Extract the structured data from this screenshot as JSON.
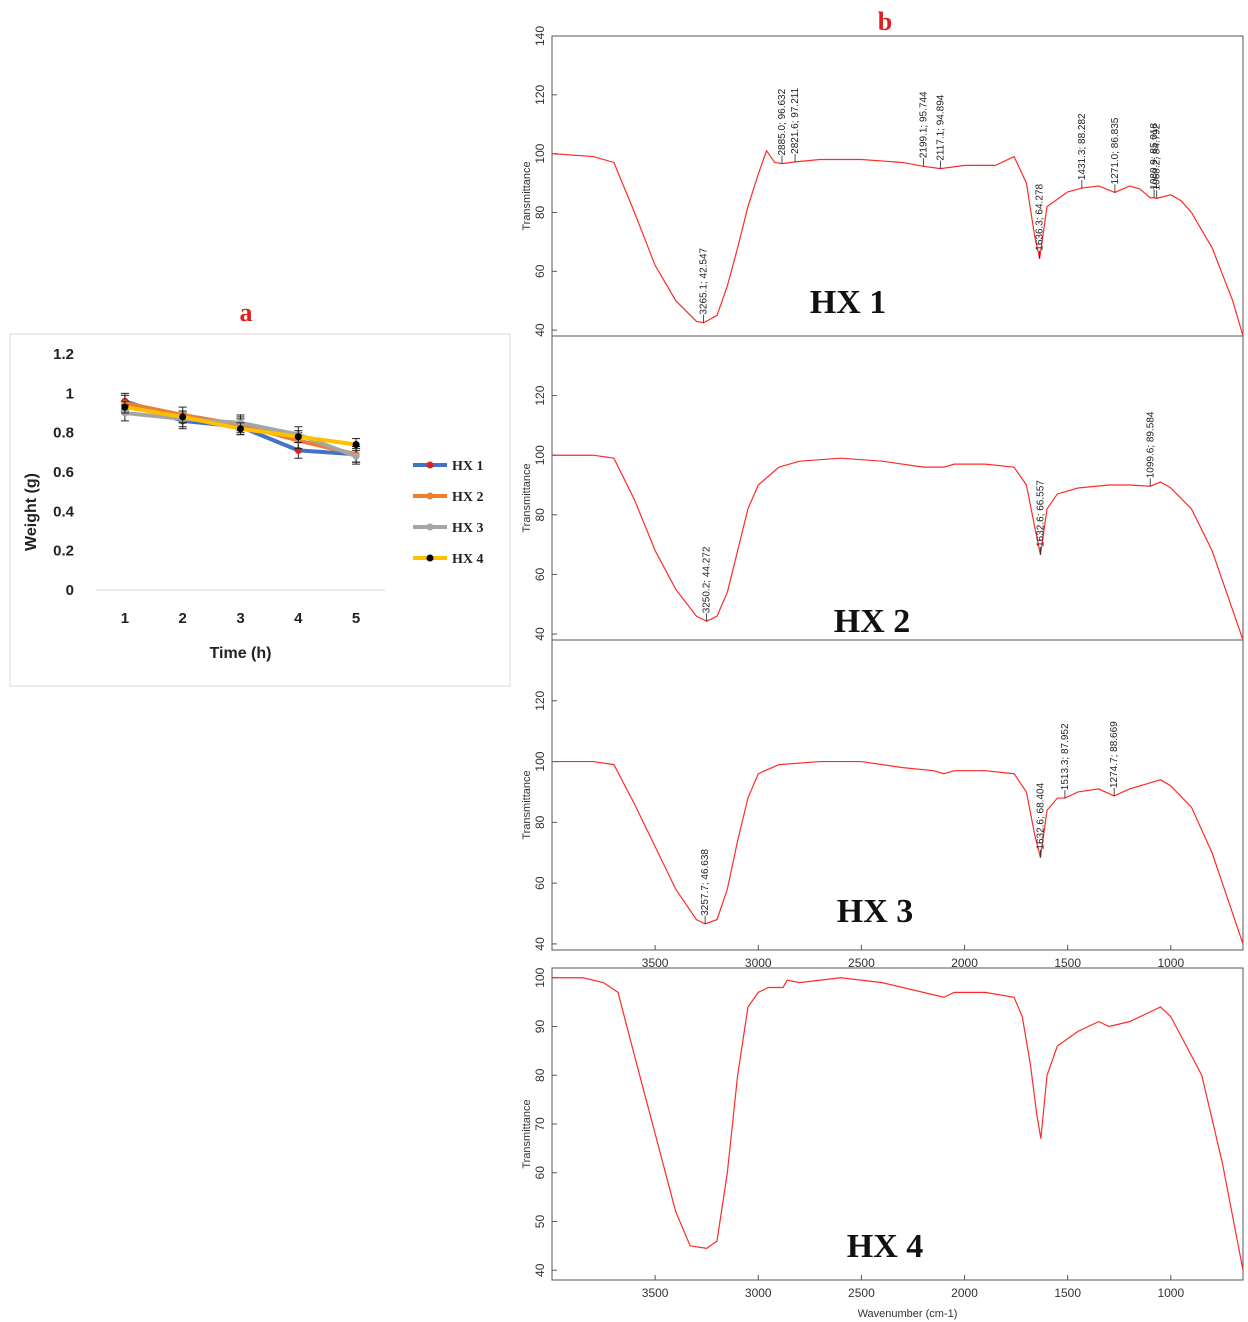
{
  "panel_a": {
    "letter": "a",
    "chart_data": {
      "type": "line",
      "xlabel": "Time (h)",
      "ylabel": "Weight (g)",
      "x": [
        1,
        2,
        3,
        4,
        5
      ],
      "x_ticks": [
        "1",
        "2",
        "3",
        "4",
        "5"
      ],
      "y_ticks": [
        "0",
        "0.2",
        "0.4",
        "0.6",
        "0.8",
        "1",
        "1.2"
      ],
      "ylim": [
        0,
        1.2
      ],
      "legend_position": "right",
      "series": [
        {
          "name": "HX 1",
          "color": "#4472c4",
          "marker": "#e02020",
          "values": [
            0.96,
            0.86,
            0.83,
            0.71,
            0.69
          ],
          "err": 0.04
        },
        {
          "name": "HX 2",
          "color": "#ed7d31",
          "marker": "#ed7d31",
          "values": [
            0.95,
            0.89,
            0.84,
            0.76,
            0.69
          ],
          "err": 0.04
        },
        {
          "name": "HX 3",
          "color": "#a5a5a5",
          "marker": "#a5a5a5",
          "values": [
            0.9,
            0.87,
            0.85,
            0.79,
            0.68
          ],
          "err": 0.04
        },
        {
          "name": "HX 4",
          "color": "#ffc000",
          "marker": "#000000",
          "values": [
            0.93,
            0.88,
            0.82,
            0.78,
            0.74
          ],
          "err": 0.03
        }
      ]
    }
  },
  "panel_b": {
    "letter": "b",
    "xlabel": "Wavenumber (cm-1)",
    "ylabel": "Transmittance",
    "x_ticks": [
      "3500",
      "3000",
      "2500",
      "2000",
      "1500",
      "1000"
    ],
    "chart_data": [
      {
        "type": "line",
        "label": "HX 1",
        "xlim": [
          4000,
          650
        ],
        "ylim": [
          38,
          140
        ],
        "y_ticks": [
          "40",
          "60",
          "80",
          "100",
          "120",
          "140"
        ],
        "points": [
          [
            4000,
            100
          ],
          [
            3800,
            99
          ],
          [
            3700,
            97
          ],
          [
            3600,
            80
          ],
          [
            3500,
            62
          ],
          [
            3400,
            50
          ],
          [
            3300,
            43
          ],
          [
            3265,
            42.5
          ],
          [
            3200,
            45
          ],
          [
            3150,
            55
          ],
          [
            3100,
            68
          ],
          [
            3050,
            82
          ],
          [
            3000,
            93
          ],
          [
            2960,
            101
          ],
          [
            2920,
            97
          ],
          [
            2885,
            96.6
          ],
          [
            2821,
            97.2
          ],
          [
            2700,
            98
          ],
          [
            2500,
            98
          ],
          [
            2300,
            97
          ],
          [
            2199,
            95.7
          ],
          [
            2117,
            94.9
          ],
          [
            2000,
            96
          ],
          [
            1850,
            96
          ],
          [
            1760,
            99
          ],
          [
            1700,
            90
          ],
          [
            1660,
            72
          ],
          [
            1636,
            64.3
          ],
          [
            1600,
            82
          ],
          [
            1500,
            87
          ],
          [
            1431,
            88.3
          ],
          [
            1350,
            89
          ],
          [
            1271,
            86.8
          ],
          [
            1200,
            89
          ],
          [
            1150,
            88
          ],
          [
            1100,
            85
          ],
          [
            1080,
            85
          ],
          [
            1068,
            84.8
          ],
          [
            1000,
            86
          ],
          [
            950,
            84
          ],
          [
            900,
            80
          ],
          [
            800,
            68
          ],
          [
            700,
            50
          ],
          [
            650,
            38
          ]
        ],
        "peaks": [
          {
            "x": 3265.1,
            "y": 42.547,
            "label": "3265.1; 42.547"
          },
          {
            "x": 2885.0,
            "y": 96.632,
            "label": "2885.0; 96.632"
          },
          {
            "x": 2821.6,
            "y": 97.211,
            "label": "2821.6; 97.211"
          },
          {
            "x": 2199.1,
            "y": 95.744,
            "label": "2199.1; 95.744"
          },
          {
            "x": 2117.1,
            "y": 94.894,
            "label": "2117.1; 94.894"
          },
          {
            "x": 1636.3,
            "y": 64.278,
            "label": "1636.3; 64.278"
          },
          {
            "x": 1431.3,
            "y": 88.282,
            "label": "1431.3; 88.282"
          },
          {
            "x": 1271.0,
            "y": 86.835,
            "label": "1271.0; 86.835"
          },
          {
            "x": 1080.9,
            "y": 85.018,
            "label": "1080.9; 85.018"
          },
          {
            "x": 1068.2,
            "y": 84.792,
            "label": "1068.2; 84.792"
          }
        ]
      },
      {
        "type": "line",
        "label": "HX 2",
        "xlim": [
          4000,
          650
        ],
        "ylim": [
          38,
          140
        ],
        "y_ticks": [
          "40",
          "60",
          "80",
          "100",
          "120"
        ],
        "points": [
          [
            4000,
            100
          ],
          [
            3800,
            100
          ],
          [
            3700,
            99
          ],
          [
            3600,
            85
          ],
          [
            3500,
            68
          ],
          [
            3400,
            55
          ],
          [
            3300,
            46
          ],
          [
            3250,
            44.3
          ],
          [
            3200,
            46
          ],
          [
            3150,
            54
          ],
          [
            3100,
            68
          ],
          [
            3050,
            82
          ],
          [
            3000,
            90
          ],
          [
            2900,
            96
          ],
          [
            2800,
            98
          ],
          [
            2600,
            99
          ],
          [
            2400,
            98
          ],
          [
            2200,
            96
          ],
          [
            2100,
            96
          ],
          [
            2050,
            97
          ],
          [
            1900,
            97
          ],
          [
            1760,
            96
          ],
          [
            1700,
            90
          ],
          [
            1660,
            76
          ],
          [
            1632,
            66.6
          ],
          [
            1600,
            82
          ],
          [
            1550,
            87
          ],
          [
            1450,
            89
          ],
          [
            1300,
            90
          ],
          [
            1200,
            90
          ],
          [
            1100,
            89.6
          ],
          [
            1050,
            91
          ],
          [
            1000,
            89
          ],
          [
            900,
            82
          ],
          [
            800,
            68
          ],
          [
            700,
            48
          ],
          [
            650,
            38
          ]
        ],
        "peaks": [
          {
            "x": 3250.2,
            "y": 44.272,
            "label": "3250.2; 44.272"
          },
          {
            "x": 1632.6,
            "y": 66.557,
            "label": "1632.6; 66.557"
          },
          {
            "x": 1099.6,
            "y": 89.584,
            "label": "1099.6; 89.584"
          }
        ]
      },
      {
        "type": "line",
        "label": "HX 3",
        "xlim": [
          4000,
          650
        ],
        "ylim": [
          38,
          140
        ],
        "y_ticks": [
          "40",
          "60",
          "80",
          "100",
          "120"
        ],
        "points": [
          [
            4000,
            100
          ],
          [
            3800,
            100
          ],
          [
            3700,
            99
          ],
          [
            3600,
            86
          ],
          [
            3500,
            72
          ],
          [
            3400,
            58
          ],
          [
            3300,
            48
          ],
          [
            3257,
            46.6
          ],
          [
            3200,
            48
          ],
          [
            3150,
            58
          ],
          [
            3100,
            74
          ],
          [
            3050,
            88
          ],
          [
            3000,
            96
          ],
          [
            2900,
            99
          ],
          [
            2700,
            100
          ],
          [
            2500,
            100
          ],
          [
            2300,
            98
          ],
          [
            2150,
            97
          ],
          [
            2100,
            96
          ],
          [
            2050,
            97
          ],
          [
            1900,
            97
          ],
          [
            1760,
            96
          ],
          [
            1700,
            90
          ],
          [
            1660,
            76
          ],
          [
            1632,
            68.4
          ],
          [
            1600,
            84
          ],
          [
            1550,
            88
          ],
          [
            1513,
            88
          ],
          [
            1450,
            90
          ],
          [
            1350,
            91
          ],
          [
            1275,
            88.7
          ],
          [
            1200,
            91
          ],
          [
            1100,
            93
          ],
          [
            1050,
            94
          ],
          [
            1000,
            92
          ],
          [
            900,
            85
          ],
          [
            800,
            70
          ],
          [
            700,
            50
          ],
          [
            650,
            40
          ]
        ],
        "peaks": [
          {
            "x": 3257.7,
            "y": 46.638,
            "label": "3257.7; 46.638"
          },
          {
            "x": 1632.6,
            "y": 68.404,
            "label": "1632.6; 68.404"
          },
          {
            "x": 1513.3,
            "y": 87.952,
            "label": "1513.3; 87.952"
          },
          {
            "x": 1274.7,
            "y": 88.669,
            "label": "1274.7; 88.669"
          }
        ]
      },
      {
        "type": "line",
        "label": "HX 4",
        "xlim": [
          4000,
          650
        ],
        "ylim": [
          38,
          102
        ],
        "y_ticks": [
          "40",
          "50",
          "60",
          "70",
          "80",
          "90",
          "100"
        ],
        "points": [
          [
            4000,
            100
          ],
          [
            3850,
            100
          ],
          [
            3750,
            99
          ],
          [
            3680,
            97
          ],
          [
            3600,
            84
          ],
          [
            3500,
            68
          ],
          [
            3400,
            52
          ],
          [
            3330,
            45
          ],
          [
            3250,
            44.5
          ],
          [
            3200,
            46
          ],
          [
            3150,
            60
          ],
          [
            3100,
            80
          ],
          [
            3050,
            94
          ],
          [
            3000,
            97
          ],
          [
            2950,
            98
          ],
          [
            2880,
            98
          ],
          [
            2860,
            99.5
          ],
          [
            2800,
            99
          ],
          [
            2600,
            100
          ],
          [
            2400,
            99
          ],
          [
            2200,
            97
          ],
          [
            2100,
            96
          ],
          [
            2050,
            97
          ],
          [
            1900,
            97
          ],
          [
            1760,
            96
          ],
          [
            1720,
            92
          ],
          [
            1680,
            82
          ],
          [
            1650,
            72
          ],
          [
            1630,
            67
          ],
          [
            1600,
            80
          ],
          [
            1550,
            86
          ],
          [
            1450,
            89
          ],
          [
            1350,
            91
          ],
          [
            1300,
            90
          ],
          [
            1200,
            91
          ],
          [
            1100,
            93
          ],
          [
            1050,
            94
          ],
          [
            1000,
            92
          ],
          [
            950,
            88
          ],
          [
            850,
            80
          ],
          [
            750,
            62
          ],
          [
            650,
            40
          ]
        ],
        "peaks": []
      }
    ]
  }
}
